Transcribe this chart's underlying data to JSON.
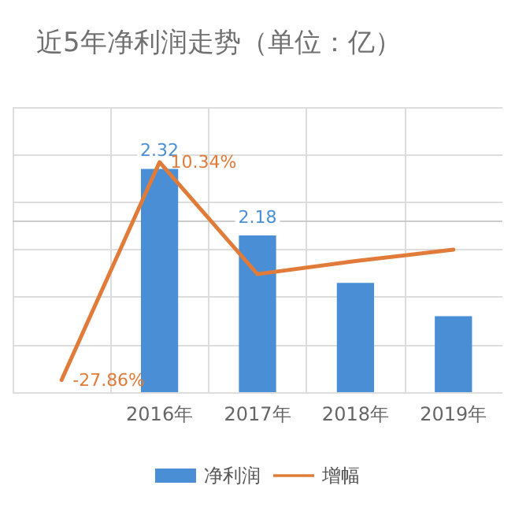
{
  "chart_data": {
    "type": "bar",
    "title": "近5年净利润走势（单位：亿）",
    "categories": [
      null,
      "2016年",
      "2017年",
      "2018年",
      "2019年"
    ],
    "series": [
      {
        "name": "净利润",
        "color": "#4a8fd6",
        "values": [
          null,
          2.32,
          2.18,
          2.08,
          2.01
        ],
        "value_labels": [
          null,
          "2.32",
          "2.18",
          null,
          null
        ]
      },
      {
        "name": "增幅",
        "type": "line",
        "axis": "y2",
        "color": "#e07b39",
        "values": [
          -27.86,
          10.34,
          -9.3,
          -7.0,
          -5.0
        ],
        "value_labels": [
          "-27.86%",
          "10.34%",
          null,
          null,
          null
        ]
      }
    ],
    "ylim": [
      1.85,
      2.45
    ],
    "yticks": [
      {
        "value": 1.85,
        "label": null
      },
      {
        "value": 1.95,
        "label": null
      },
      {
        "value": 2.05,
        "label": null
      },
      {
        "value": 2.15,
        "label": null
      },
      {
        "value": 2.25,
        "label": null
      },
      {
        "value": 2.35,
        "label": null
      },
      {
        "value": 2.45,
        "label": null
      }
    ],
    "tick_labels": "x",
    "grid": true,
    "legend": "bottom",
    "marker": "none",
    "line_style": "solid"
  }
}
